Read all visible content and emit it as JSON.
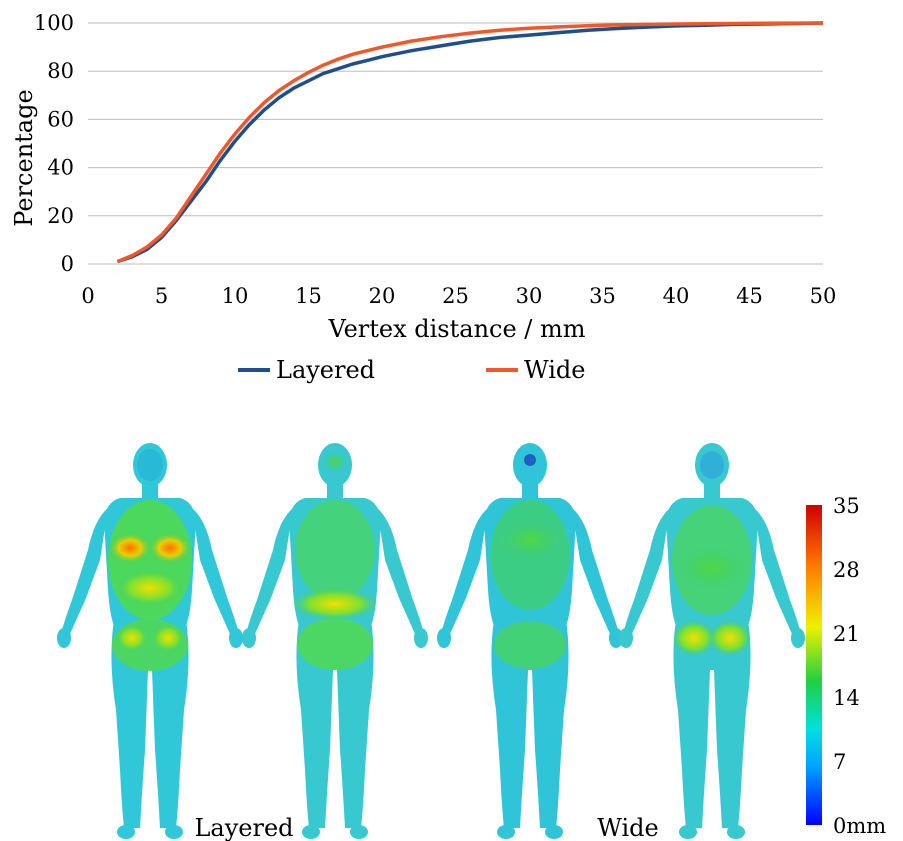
{
  "chart_data": {
    "type": "line",
    "xlabel": "Vertex distance / mm",
    "ylabel": "Percentage",
    "xlim": [
      0,
      50
    ],
    "ylim": [
      0,
      100
    ],
    "x_ticks": [
      "0",
      "5",
      "10",
      "15",
      "20",
      "25",
      "30",
      "35",
      "40",
      "45",
      "50"
    ],
    "y_ticks": [
      "0",
      "20",
      "40",
      "60",
      "80",
      "100"
    ],
    "grid": "horizontal",
    "legend_position": "bottom",
    "series": [
      {
        "name": "Layered",
        "color": "#1f4e8c",
        "x": [
          2,
          3,
          4,
          5,
          6,
          7,
          8,
          9,
          10,
          11,
          12,
          13,
          14,
          15,
          16,
          17,
          18,
          19,
          20,
          22,
          24,
          26,
          28,
          30,
          32,
          34,
          36,
          38,
          40,
          42,
          44,
          46,
          48,
          50
        ],
        "y": [
          1,
          3,
          6,
          11,
          18,
          26,
          34,
          43,
          51,
          58,
          64,
          69,
          73,
          76,
          79,
          81,
          83,
          84.5,
          86,
          88.5,
          90.5,
          92.5,
          94,
          95,
          96,
          97,
          97.7,
          98.3,
          98.8,
          99.1,
          99.4,
          99.6,
          99.8,
          100
        ]
      },
      {
        "name": "Wide",
        "color": "#f0582a",
        "x": [
          2,
          3,
          4,
          5,
          6,
          7,
          8,
          9,
          10,
          11,
          12,
          13,
          14,
          15,
          16,
          17,
          18,
          19,
          20,
          22,
          24,
          26,
          28,
          30,
          32,
          34,
          36,
          38,
          40,
          42,
          44,
          46,
          48,
          50
        ],
        "y": [
          1,
          3.5,
          7,
          12,
          19,
          28,
          37,
          46,
          54,
          61,
          67,
          72,
          76,
          79.5,
          82.5,
          85,
          87,
          88.5,
          90,
          92.5,
          94.3,
          95.8,
          97,
          97.8,
          98.4,
          98.9,
          99.2,
          99.4,
          99.6,
          99.7,
          99.8,
          99.9,
          99.95,
          100
        ]
      }
    ],
    "colorbar": {
      "ticks": [
        "35",
        "28",
        "21",
        "14",
        "7",
        "0mm"
      ],
      "range": [
        0,
        35
      ],
      "colors": [
        "#0000ff",
        "#00a0ff",
        "#00e0e0",
        "#20d040",
        "#f0f000",
        "#ff8000",
        "#d00000"
      ]
    },
    "captions": [
      "Layered",
      "Wide"
    ]
  }
}
